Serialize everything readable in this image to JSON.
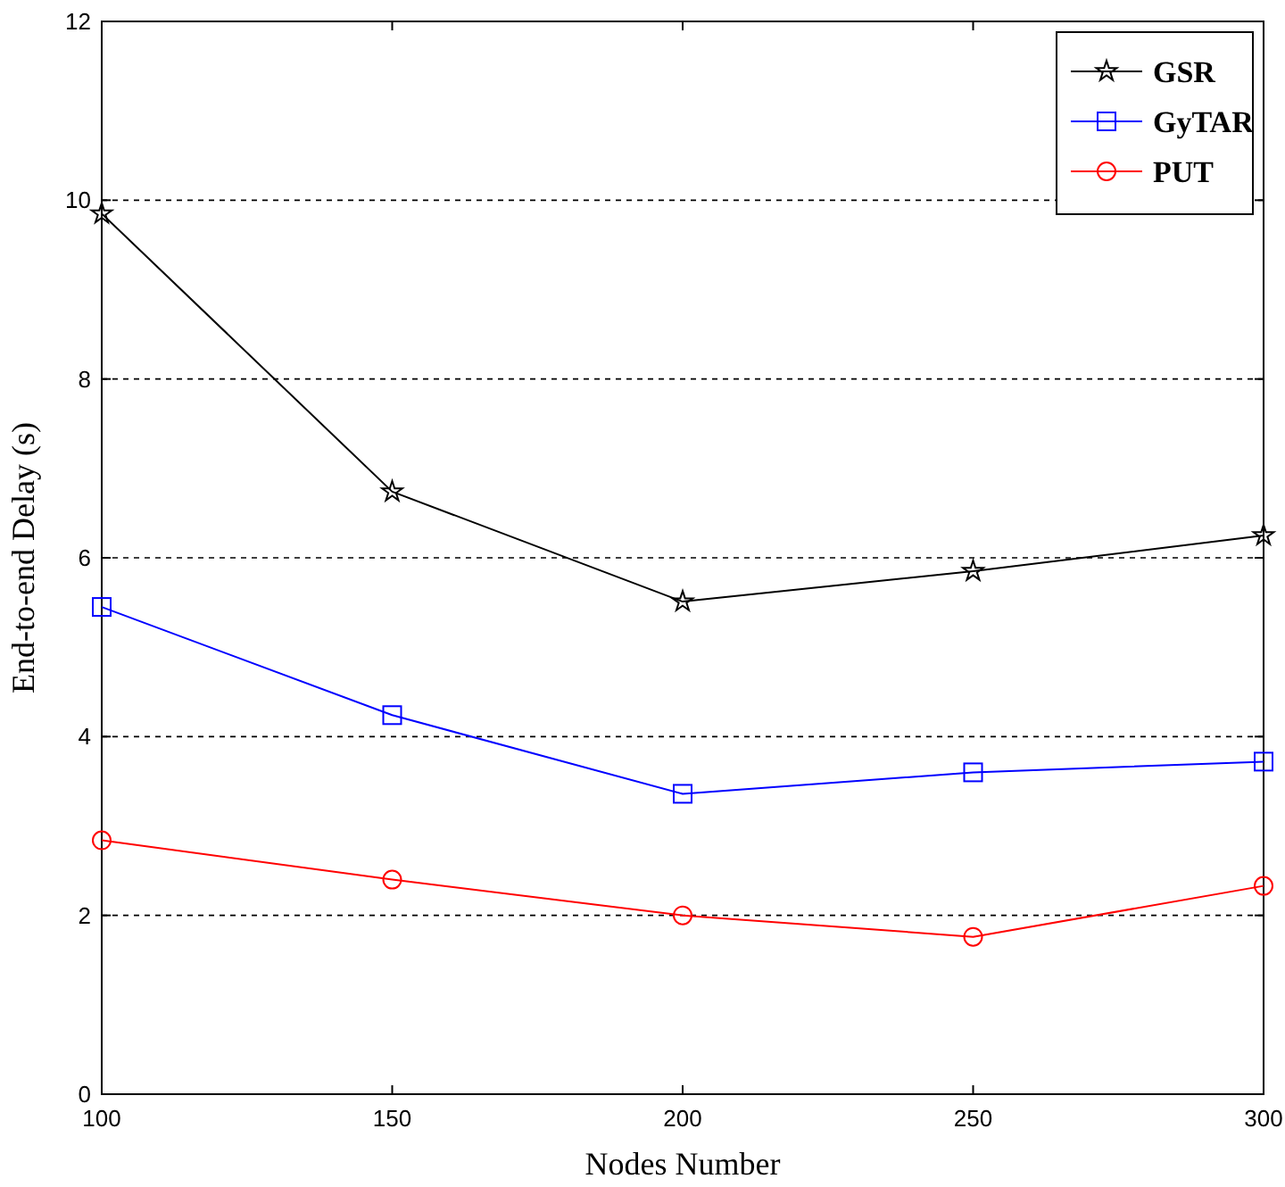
{
  "chart_data": {
    "type": "line",
    "xlabel": "Nodes Number",
    "ylabel": "End-to-end Delay (s)",
    "x": [
      100,
      150,
      200,
      250,
      300
    ],
    "series": [
      {
        "name": "GSR",
        "color": "#000000",
        "marker": "star",
        "values": [
          9.85,
          6.74,
          5.51,
          5.85,
          6.25
        ]
      },
      {
        "name": "GyTAR",
        "color": "#0000ff",
        "marker": "square",
        "values": [
          5.45,
          4.24,
          3.36,
          3.6,
          3.72
        ]
      },
      {
        "name": "PUT",
        "color": "#ff0000",
        "marker": "circle",
        "values": [
          2.84,
          2.4,
          2.0,
          1.76,
          2.33
        ]
      }
    ],
    "xlim": [
      100,
      300
    ],
    "xticks": [
      100,
      150,
      200,
      250,
      300
    ],
    "ylim": [
      0,
      12
    ],
    "yticks": [
      0,
      2,
      4,
      6,
      8,
      10,
      12
    ],
    "grid": "y",
    "legend": "top right",
    "line_style": "solid"
  }
}
